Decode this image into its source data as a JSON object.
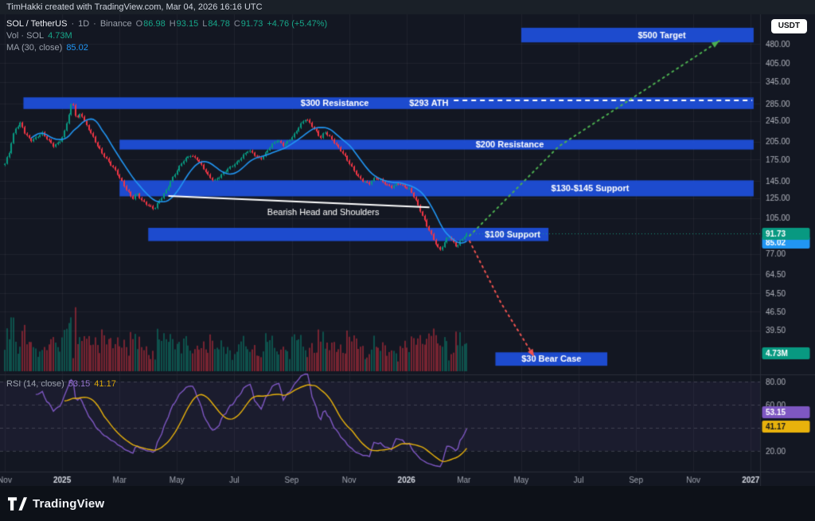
{
  "topbar": {
    "attribution": "TimHakki created with TradingView.com, Mar 04, 2026 16:16 UTC"
  },
  "currency_button": "USDT",
  "legend": {
    "symbol": "SOL / TetherUS",
    "sep": "·",
    "interval": "1D",
    "exchange": "Binance",
    "ohlc": {
      "o_label": "O",
      "o": "86.98",
      "h_label": "H",
      "h": "93.15",
      "l_label": "L",
      "l": "84.78",
      "c_label": "C",
      "c": "91.73",
      "change": "+4.76 (+5.47%)"
    },
    "volume": {
      "label": "Vol · SOL",
      "value": "4.73M"
    },
    "ma": {
      "label": "MA (30, close)",
      "value": "85.02"
    }
  },
  "rsi_legend": {
    "label": "RSI (14, close)",
    "value1": "53.15",
    "value2": "41.17"
  },
  "footer": {
    "brand": "TradingView"
  },
  "chart_data": {
    "type": "candlestick",
    "title": "SOL / TetherUS · 1D · Binance",
    "scale": "log",
    "ohlc_current": {
      "open": 86.98,
      "high": 93.15,
      "low": 84.78,
      "close": 91.73,
      "change": "+4.76 (+5.47%)"
    },
    "last_price": 91.73,
    "ma30": 85.02,
    "volume_current": "4.73M",
    "rsi_current": 53.15,
    "rsi_ma_current": 41.17,
    "price_axis": {
      "ticks": [
        480,
        405,
        345,
        285,
        245,
        205,
        175,
        145,
        125,
        105,
        77,
        64.5,
        54.5,
        46.5,
        39.5
      ]
    },
    "rsi_axis": {
      "ticks": [
        80,
        60,
        20
      ],
      "guides": [
        80,
        60,
        40,
        20
      ]
    },
    "x_axis": {
      "labels": [
        {
          "t": "Nov",
          "m": 0,
          "y": false
        },
        {
          "t": "2025",
          "m": 2,
          "y": true
        },
        {
          "t": "Mar",
          "m": 4,
          "y": false
        },
        {
          "t": "May",
          "m": 6,
          "y": false
        },
        {
          "t": "Jul",
          "m": 8,
          "y": false
        },
        {
          "t": "Sep",
          "m": 10,
          "y": false
        },
        {
          "t": "Nov",
          "m": 12,
          "y": false
        },
        {
          "t": "2026",
          "m": 14,
          "y": true
        },
        {
          "t": "Mar",
          "m": 16,
          "y": false
        },
        {
          "t": "May",
          "m": 18,
          "y": false
        },
        {
          "t": "Jul",
          "m": 20,
          "y": false
        },
        {
          "t": "Sep",
          "m": 22,
          "y": false
        },
        {
          "t": "Nov",
          "m": 24,
          "y": false
        },
        {
          "t": "2027",
          "m": 26,
          "y": true
        }
      ]
    },
    "candles": {
      "count": 210,
      "end_month": 16.1
    },
    "anchors": [
      [
        0,
        168
      ],
      [
        0.15,
        185
      ],
      [
        0.35,
        228
      ],
      [
        0.55,
        242
      ],
      [
        0.7,
        220
      ],
      [
        0.9,
        205
      ],
      [
        1.1,
        212
      ],
      [
        1.3,
        222
      ],
      [
        1.5,
        208
      ],
      [
        1.7,
        196
      ],
      [
        1.9,
        203
      ],
      [
        2.05,
        218
      ],
      [
        2.2,
        252
      ],
      [
        2.35,
        293
      ],
      [
        2.5,
        246
      ],
      [
        2.65,
        262
      ],
      [
        2.8,
        240
      ],
      [
        3,
        222
      ],
      [
        3.2,
        200
      ],
      [
        3.4,
        183
      ],
      [
        3.6,
        172
      ],
      [
        3.8,
        163
      ],
      [
        4,
        150
      ],
      [
        4.2,
        136
      ],
      [
        4.45,
        124
      ],
      [
        4.6,
        131
      ],
      [
        4.8,
        122
      ],
      [
        5,
        117
      ],
      [
        5.2,
        113
      ],
      [
        5.4,
        123
      ],
      [
        5.6,
        133
      ],
      [
        5.8,
        146
      ],
      [
        6,
        158
      ],
      [
        6.2,
        172
      ],
      [
        6.45,
        183
      ],
      [
        6.7,
        175
      ],
      [
        6.9,
        163
      ],
      [
        7.1,
        152
      ],
      [
        7.3,
        146
      ],
      [
        7.5,
        151
      ],
      [
        7.7,
        158
      ],
      [
        7.9,
        165
      ],
      [
        8.1,
        172
      ],
      [
        8.3,
        181
      ],
      [
        8.5,
        189
      ],
      [
        8.7,
        182
      ],
      [
        8.9,
        176
      ],
      [
        9.1,
        186
      ],
      [
        9.3,
        198
      ],
      [
        9.5,
        207
      ],
      [
        9.7,
        199
      ],
      [
        9.9,
        207
      ],
      [
        10.1,
        218
      ],
      [
        10.3,
        236
      ],
      [
        10.5,
        251
      ],
      [
        10.65,
        240
      ],
      [
        10.8,
        228
      ],
      [
        11,
        210
      ],
      [
        11.15,
        222
      ],
      [
        11.3,
        215
      ],
      [
        11.5,
        203
      ],
      [
        11.7,
        190
      ],
      [
        11.9,
        176
      ],
      [
        12.1,
        163
      ],
      [
        12.3,
        152
      ],
      [
        12.5,
        145
      ],
      [
        12.7,
        141
      ],
      [
        12.9,
        149
      ],
      [
        13.1,
        147
      ],
      [
        13.3,
        141
      ],
      [
        13.5,
        137
      ],
      [
        13.7,
        142
      ],
      [
        13.9,
        139
      ],
      [
        14.1,
        136
      ],
      [
        14.25,
        127
      ],
      [
        14.4,
        117
      ],
      [
        14.55,
        107
      ],
      [
        14.7,
        99
      ],
      [
        14.85,
        92
      ],
      [
        15,
        85
      ],
      [
        15.15,
        79
      ],
      [
        15.3,
        83
      ],
      [
        15.45,
        90
      ],
      [
        15.6,
        86
      ],
      [
        15.75,
        82
      ],
      [
        15.9,
        87
      ],
      [
        16,
        89
      ],
      [
        16.1,
        91.73
      ]
    ],
    "bands": [
      {
        "label": "$500 Target",
        "m0": 18.0,
        "m1": 26.1,
        "p0": 486,
        "p1": 552,
        "label_m": 22.9
      },
      {
        "label": "$300 Resistance",
        "m0": 0.65,
        "m1": 26.1,
        "p0": 272,
        "p1": 301,
        "label_m": 11.5
      },
      {
        "label": "$200 Resistance",
        "m0": 4.0,
        "m1": 26.1,
        "p0": 191,
        "p1": 208,
        "label_m": 17.6
      },
      {
        "label": "$130-$145 Support",
        "m0": 4.0,
        "m1": 26.1,
        "p0": 127,
        "p1": 146,
        "label_m": 20.4
      },
      {
        "label": "$100 Support",
        "m0": 5.0,
        "m1": 18.95,
        "p0": 86,
        "p1": 96.5,
        "label_m": 17.7
      },
      {
        "label": "$30 Bear Case",
        "m0": 17.1,
        "m1": 21.0,
        "p0": 29,
        "p1": 32.6,
        "label_m": 19.05
      }
    ],
    "ath_line": {
      "label": "$293 ATH",
      "price": 293,
      "m0": 15.65,
      "m1": 26.05,
      "label_m": 14.78,
      "label_price": 286
    },
    "trendline": {
      "label": "Bearish Head and Shoulders",
      "points": [
        [
          5.7,
          127.5
        ],
        [
          14.8,
          115.5
        ]
      ],
      "label_m": 11.1,
      "label_price": 110.5
    },
    "projections": [
      {
        "name": "bull-target-path",
        "color": "#4caf50",
        "points": [
          [
            16.2,
            90
          ],
          [
            19.3,
            196
          ],
          [
            24.9,
            492
          ]
        ]
      },
      {
        "name": "bear-case-path",
        "color": "#ef5350",
        "points": [
          [
            16.2,
            86
          ],
          [
            17.3,
            50
          ],
          [
            18.45,
            31.4
          ]
        ]
      }
    ],
    "badges": {
      "price": {
        "text": "91.73",
        "color": "#089981",
        "fg": "#ffffff"
      },
      "ma": {
        "text": "85.02",
        "color": "#2196f3",
        "fg": "#ffffff"
      },
      "volume": {
        "text": "4.73M",
        "color": "#089981",
        "fg": "#ffffff"
      },
      "rsi": {
        "text": "53.15",
        "color": "#7e57c2",
        "fg": "#ffffff"
      },
      "rsi_ma": {
        "text": "41.17",
        "color": "#e8b20c",
        "fg": "#14161c"
      }
    },
    "colors": {
      "up": "#089981",
      "down": "#f23645",
      "ma": "#2196f3",
      "band": "rgba(30,80,220,0.93)",
      "rsi": "#7e57c2",
      "rsi_ma": "#e8b20c",
      "neckline": "#ffffff",
      "bull": "#4caf50",
      "bear": "#ef5350"
    }
  }
}
